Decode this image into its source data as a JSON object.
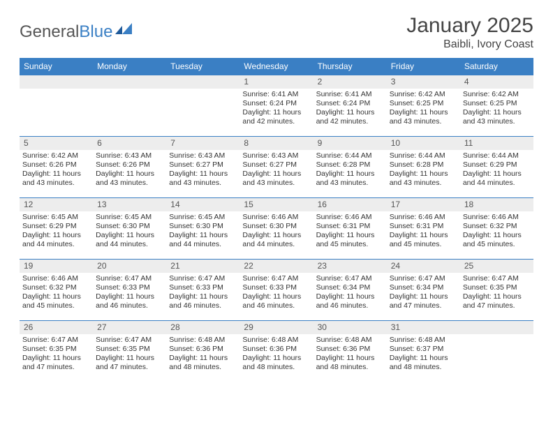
{
  "logo": {
    "text1": "General",
    "text2": "Blue"
  },
  "title": "January 2025",
  "location": "Baibli, Ivory Coast",
  "colors": {
    "header_bg": "#3a7fc4",
    "header_fg": "#ffffff",
    "daynum_bg": "#ededed",
    "text": "#333333",
    "border": "#3a7fc4"
  },
  "weekdays": [
    "Sunday",
    "Monday",
    "Tuesday",
    "Wednesday",
    "Thursday",
    "Friday",
    "Saturday"
  ],
  "weeks": [
    [
      null,
      null,
      null,
      {
        "n": "1",
        "sr": "6:41 AM",
        "ss": "6:24 PM",
        "dl": "11 hours and 42 minutes."
      },
      {
        "n": "2",
        "sr": "6:41 AM",
        "ss": "6:24 PM",
        "dl": "11 hours and 42 minutes."
      },
      {
        "n": "3",
        "sr": "6:42 AM",
        "ss": "6:25 PM",
        "dl": "11 hours and 43 minutes."
      },
      {
        "n": "4",
        "sr": "6:42 AM",
        "ss": "6:25 PM",
        "dl": "11 hours and 43 minutes."
      }
    ],
    [
      {
        "n": "5",
        "sr": "6:42 AM",
        "ss": "6:26 PM",
        "dl": "11 hours and 43 minutes."
      },
      {
        "n": "6",
        "sr": "6:43 AM",
        "ss": "6:26 PM",
        "dl": "11 hours and 43 minutes."
      },
      {
        "n": "7",
        "sr": "6:43 AM",
        "ss": "6:27 PM",
        "dl": "11 hours and 43 minutes."
      },
      {
        "n": "8",
        "sr": "6:43 AM",
        "ss": "6:27 PM",
        "dl": "11 hours and 43 minutes."
      },
      {
        "n": "9",
        "sr": "6:44 AM",
        "ss": "6:28 PM",
        "dl": "11 hours and 43 minutes."
      },
      {
        "n": "10",
        "sr": "6:44 AM",
        "ss": "6:28 PM",
        "dl": "11 hours and 43 minutes."
      },
      {
        "n": "11",
        "sr": "6:44 AM",
        "ss": "6:29 PM",
        "dl": "11 hours and 44 minutes."
      }
    ],
    [
      {
        "n": "12",
        "sr": "6:45 AM",
        "ss": "6:29 PM",
        "dl": "11 hours and 44 minutes."
      },
      {
        "n": "13",
        "sr": "6:45 AM",
        "ss": "6:30 PM",
        "dl": "11 hours and 44 minutes."
      },
      {
        "n": "14",
        "sr": "6:45 AM",
        "ss": "6:30 PM",
        "dl": "11 hours and 44 minutes."
      },
      {
        "n": "15",
        "sr": "6:46 AM",
        "ss": "6:30 PM",
        "dl": "11 hours and 44 minutes."
      },
      {
        "n": "16",
        "sr": "6:46 AM",
        "ss": "6:31 PM",
        "dl": "11 hours and 45 minutes."
      },
      {
        "n": "17",
        "sr": "6:46 AM",
        "ss": "6:31 PM",
        "dl": "11 hours and 45 minutes."
      },
      {
        "n": "18",
        "sr": "6:46 AM",
        "ss": "6:32 PM",
        "dl": "11 hours and 45 minutes."
      }
    ],
    [
      {
        "n": "19",
        "sr": "6:46 AM",
        "ss": "6:32 PM",
        "dl": "11 hours and 45 minutes."
      },
      {
        "n": "20",
        "sr": "6:47 AM",
        "ss": "6:33 PM",
        "dl": "11 hours and 46 minutes."
      },
      {
        "n": "21",
        "sr": "6:47 AM",
        "ss": "6:33 PM",
        "dl": "11 hours and 46 minutes."
      },
      {
        "n": "22",
        "sr": "6:47 AM",
        "ss": "6:33 PM",
        "dl": "11 hours and 46 minutes."
      },
      {
        "n": "23",
        "sr": "6:47 AM",
        "ss": "6:34 PM",
        "dl": "11 hours and 46 minutes."
      },
      {
        "n": "24",
        "sr": "6:47 AM",
        "ss": "6:34 PM",
        "dl": "11 hours and 47 minutes."
      },
      {
        "n": "25",
        "sr": "6:47 AM",
        "ss": "6:35 PM",
        "dl": "11 hours and 47 minutes."
      }
    ],
    [
      {
        "n": "26",
        "sr": "6:47 AM",
        "ss": "6:35 PM",
        "dl": "11 hours and 47 minutes."
      },
      {
        "n": "27",
        "sr": "6:47 AM",
        "ss": "6:35 PM",
        "dl": "11 hours and 47 minutes."
      },
      {
        "n": "28",
        "sr": "6:48 AM",
        "ss": "6:36 PM",
        "dl": "11 hours and 48 minutes."
      },
      {
        "n": "29",
        "sr": "6:48 AM",
        "ss": "6:36 PM",
        "dl": "11 hours and 48 minutes."
      },
      {
        "n": "30",
        "sr": "6:48 AM",
        "ss": "6:36 PM",
        "dl": "11 hours and 48 minutes."
      },
      {
        "n": "31",
        "sr": "6:48 AM",
        "ss": "6:37 PM",
        "dl": "11 hours and 48 minutes."
      },
      null
    ]
  ],
  "labels": {
    "sunrise": "Sunrise:",
    "sunset": "Sunset:",
    "daylight": "Daylight:"
  }
}
